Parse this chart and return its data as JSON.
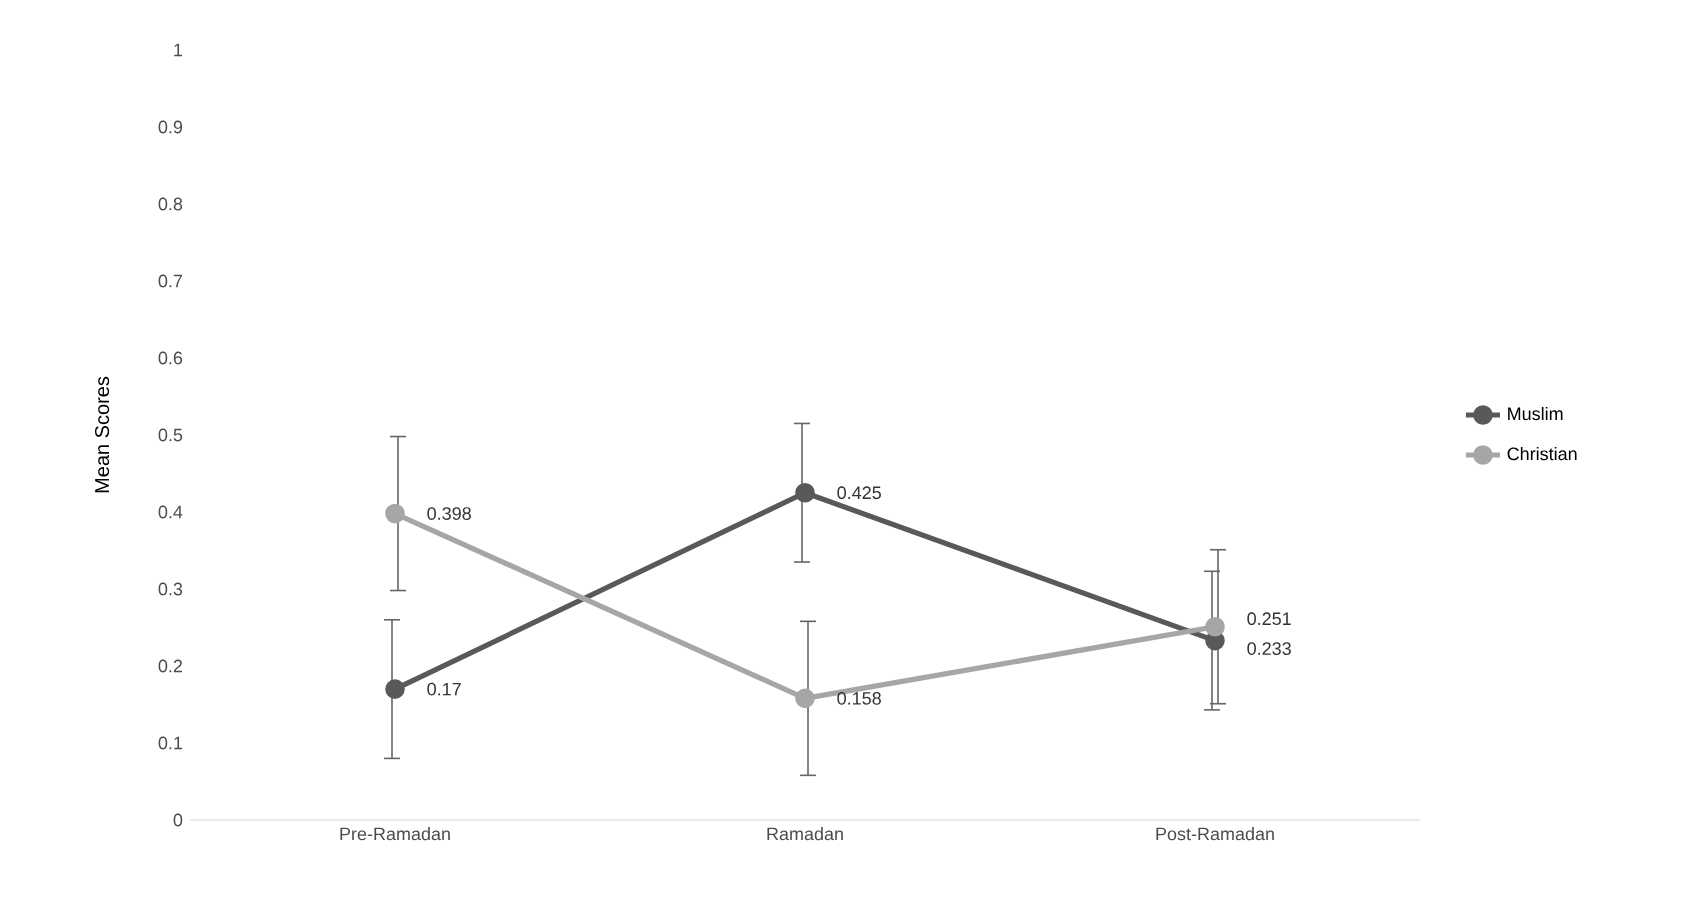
{
  "chart_data": {
    "type": "line",
    "ylabel": "Mean Scores",
    "categories": [
      "Pre-Ramadan",
      "Ramadan",
      "Post-Ramadan"
    ],
    "series": [
      {
        "name": "Muslim",
        "color": "#595959",
        "values": [
          0.17,
          0.425,
          0.233
        ],
        "errors": [
          0.09,
          0.09,
          0.09
        ]
      },
      {
        "name": "Christian",
        "color": "#a6a6a6",
        "values": [
          0.398,
          0.158,
          0.251
        ],
        "errors": [
          0.1,
          0.1,
          0.1
        ]
      }
    ],
    "ylim": [
      0,
      1
    ],
    "yticks": [
      0,
      0.1,
      0.2,
      0.3,
      0.4,
      0.5,
      0.6,
      0.7,
      0.8,
      0.9,
      1
    ],
    "grid": false,
    "legend": "right",
    "marker": "circle",
    "line_style": "solid",
    "data_labels": true
  }
}
